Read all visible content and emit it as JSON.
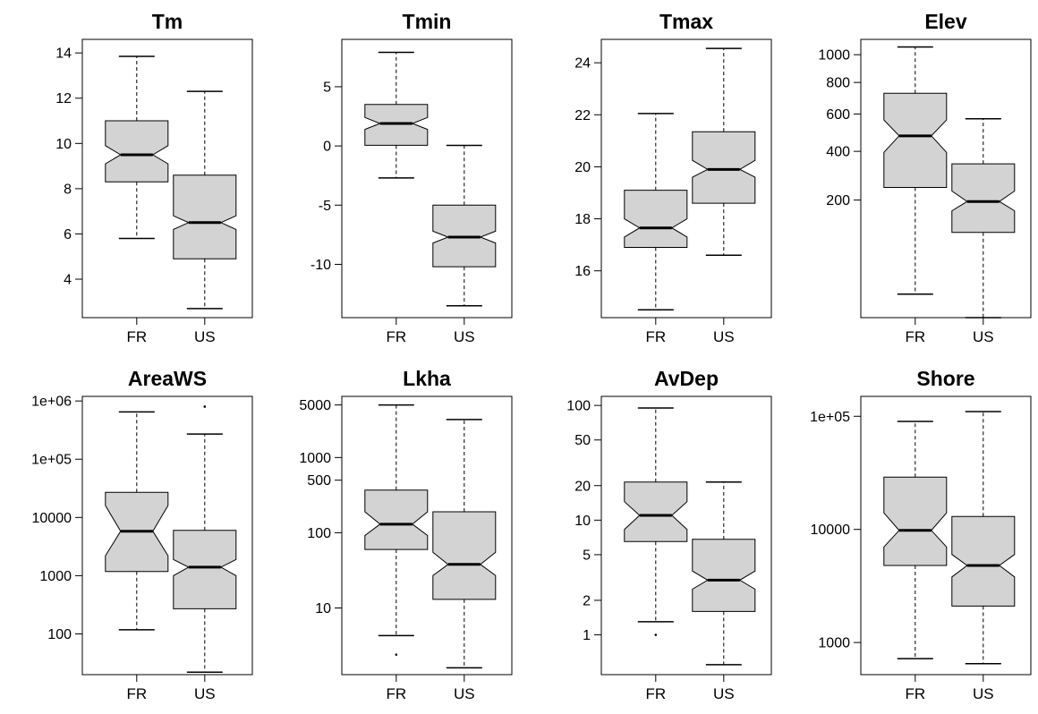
{
  "chart_data": [
    {
      "type": "boxplot",
      "title": "Tm",
      "scale": "linear",
      "ylim": [
        2.3,
        14.6
      ],
      "yticks": [
        {
          "v": 4,
          "label": "4"
        },
        {
          "v": 6,
          "label": "6"
        },
        {
          "v": 8,
          "label": "8"
        },
        {
          "v": 10,
          "label": "10"
        },
        {
          "v": 12,
          "label": "12"
        },
        {
          "v": 14,
          "label": "14"
        }
      ],
      "categories": [
        "FR",
        "US"
      ],
      "boxes": [
        {
          "category": "FR",
          "whisker_low": 5.8,
          "q1": 8.3,
          "median": 9.5,
          "q3": 11.0,
          "whisker_high": 13.85,
          "notch_low": 9.1,
          "notch_high": 9.9,
          "outliers": []
        },
        {
          "category": "US",
          "whisker_low": 2.7,
          "q1": 4.9,
          "median": 6.5,
          "q3": 8.6,
          "whisker_high": 12.3,
          "notch_low": 6.2,
          "notch_high": 6.8,
          "outliers": []
        }
      ]
    },
    {
      "type": "boxplot",
      "title": "Tmin",
      "scale": "linear",
      "ylim": [
        -14.5,
        9.0
      ],
      "yticks": [
        {
          "v": -10,
          "label": "-10"
        },
        {
          "v": -5,
          "label": "-5"
        },
        {
          "v": 0,
          "label": "0"
        },
        {
          "v": 5,
          "label": "5"
        }
      ],
      "categories": [
        "FR",
        "US"
      ],
      "boxes": [
        {
          "category": "FR",
          "whisker_low": -2.7,
          "q1": 0.05,
          "median": 1.9,
          "q3": 3.5,
          "whisker_high": 7.9,
          "notch_low": 1.4,
          "notch_high": 2.4,
          "outliers": []
        },
        {
          "category": "US",
          "whisker_low": -13.5,
          "q1": -10.2,
          "median": -7.7,
          "q3": -5.0,
          "whisker_high": 0.05,
          "notch_low": -8.2,
          "notch_high": -7.2,
          "outliers": []
        }
      ]
    },
    {
      "type": "boxplot",
      "title": "Tmax",
      "scale": "linear",
      "ylim": [
        14.2,
        24.9
      ],
      "yticks": [
        {
          "v": 16,
          "label": "16"
        },
        {
          "v": 18,
          "label": "18"
        },
        {
          "v": 20,
          "label": "20"
        },
        {
          "v": 22,
          "label": "22"
        },
        {
          "v": 24,
          "label": "24"
        }
      ],
      "categories": [
        "FR",
        "US"
      ],
      "boxes": [
        {
          "category": "FR",
          "whisker_low": 14.5,
          "q1": 16.9,
          "median": 17.65,
          "q3": 19.1,
          "whisker_high": 22.05,
          "notch_low": 17.3,
          "notch_high": 18.0,
          "outliers": []
        },
        {
          "category": "US",
          "whisker_low": 16.6,
          "q1": 18.6,
          "median": 19.9,
          "q3": 21.35,
          "whisker_high": 24.55,
          "notch_low": 19.6,
          "notch_high": 20.25,
          "outliers": []
        }
      ]
    },
    {
      "type": "boxplot",
      "title": "Elev",
      "scale": "sqrt",
      "ylim": [
        0,
        1120
      ],
      "yticks": [
        {
          "v": 200,
          "label": "200"
        },
        {
          "v": 400,
          "label": "400"
        },
        {
          "v": 600,
          "label": "600"
        },
        {
          "v": 800,
          "label": "800"
        },
        {
          "v": 1000,
          "label": "1000"
        }
      ],
      "categories": [
        "FR",
        "US"
      ],
      "boxes": [
        {
          "category": "FR",
          "whisker_low": 8,
          "q1": 245,
          "median": 478,
          "q3": 728,
          "whisker_high": 1060,
          "notch_low": 395,
          "notch_high": 565,
          "outliers": []
        },
        {
          "category": "US",
          "whisker_low": 0,
          "q1": 105,
          "median": 195,
          "q3": 342,
          "whisker_high": 572,
          "notch_low": 165,
          "notch_high": 232,
          "outliers": []
        }
      ]
    },
    {
      "type": "boxplot",
      "title": "AreaWS",
      "scale": "log",
      "ylim": [
        20,
        1200000
      ],
      "yticks": [
        {
          "v": 100,
          "label": "100"
        },
        {
          "v": 1000,
          "label": "1000"
        },
        {
          "v": 10000,
          "label": "10000"
        },
        {
          "v": 100000,
          "label": "1e+05"
        },
        {
          "v": 1000000,
          "label": "1e+06"
        }
      ],
      "categories": [
        "FR",
        "US"
      ],
      "boxes": [
        {
          "category": "FR",
          "whisker_low": 118,
          "q1": 1180,
          "median": 5800,
          "q3": 27000,
          "whisker_high": 650000,
          "notch_low": 2200,
          "notch_high": 16000,
          "outliers": []
        },
        {
          "category": "US",
          "whisker_low": 22,
          "q1": 270,
          "median": 1400,
          "q3": 6000,
          "whisker_high": 270000,
          "notch_low": 1000,
          "notch_high": 1900,
          "outliers": [
            800000
          ]
        }
      ]
    },
    {
      "type": "boxplot",
      "title": "Lkha",
      "scale": "log",
      "ylim": [
        1.3,
        6500
      ],
      "yticks": [
        {
          "v": 10,
          "label": "10"
        },
        {
          "v": 100,
          "label": "100"
        },
        {
          "v": 500,
          "label": "500"
        },
        {
          "v": 1000,
          "label": "1000"
        },
        {
          "v": 5000,
          "label": "5000"
        }
      ],
      "categories": [
        "FR",
        "US"
      ],
      "boxes": [
        {
          "category": "FR",
          "whisker_low": 4.3,
          "q1": 60,
          "median": 130,
          "q3": 370,
          "whisker_high": 5000,
          "notch_low": 92,
          "notch_high": 190,
          "outliers": [
            2.4
          ]
        },
        {
          "category": "US",
          "whisker_low": 1.6,
          "q1": 13,
          "median": 38,
          "q3": 190,
          "whisker_high": 3200,
          "notch_low": 27,
          "notch_high": 55,
          "outliers": []
        }
      ]
    },
    {
      "type": "boxplot",
      "title": "AvDep",
      "scale": "log",
      "ylim": [
        0.45,
        120
      ],
      "yticks": [
        {
          "v": 1,
          "label": "1"
        },
        {
          "v": 2,
          "label": "2"
        },
        {
          "v": 5,
          "label": "5"
        },
        {
          "v": 10,
          "label": "10"
        },
        {
          "v": 20,
          "label": "20"
        },
        {
          "v": 50,
          "label": "50"
        },
        {
          "v": 100,
          "label": "100"
        }
      ],
      "categories": [
        "FR",
        "US"
      ],
      "boxes": [
        {
          "category": "FR",
          "whisker_low": 1.3,
          "q1": 6.5,
          "median": 11,
          "q3": 21.5,
          "whisker_high": 95,
          "notch_low": 8.3,
          "notch_high": 14.5,
          "outliers": [
            1.0
          ]
        },
        {
          "category": "US",
          "whisker_low": 0.55,
          "q1": 1.6,
          "median": 3.0,
          "q3": 6.8,
          "whisker_high": 21.5,
          "notch_low": 2.5,
          "notch_high": 3.6,
          "outliers": []
        }
      ]
    },
    {
      "type": "boxplot",
      "title": "Shore",
      "scale": "log",
      "ylim": [
        520,
        150000
      ],
      "yticks": [
        {
          "v": 1000,
          "label": "1000"
        },
        {
          "v": 10000,
          "label": "10000"
        },
        {
          "v": 100000,
          "label": "1e+05"
        }
      ],
      "categories": [
        "FR",
        "US"
      ],
      "boxes": [
        {
          "category": "FR",
          "whisker_low": 720,
          "q1": 4800,
          "median": 9800,
          "q3": 29000,
          "whisker_high": 90000,
          "notch_low": 7000,
          "notch_high": 14000,
          "outliers": []
        },
        {
          "category": "US",
          "whisker_low": 650,
          "q1": 2100,
          "median": 4800,
          "q3": 13000,
          "whisker_high": 110000,
          "notch_low": 3800,
          "notch_high": 6000,
          "outliers": []
        }
      ]
    }
  ],
  "colors": {
    "box_fill": "#d3d3d3",
    "stroke": "#000000"
  }
}
